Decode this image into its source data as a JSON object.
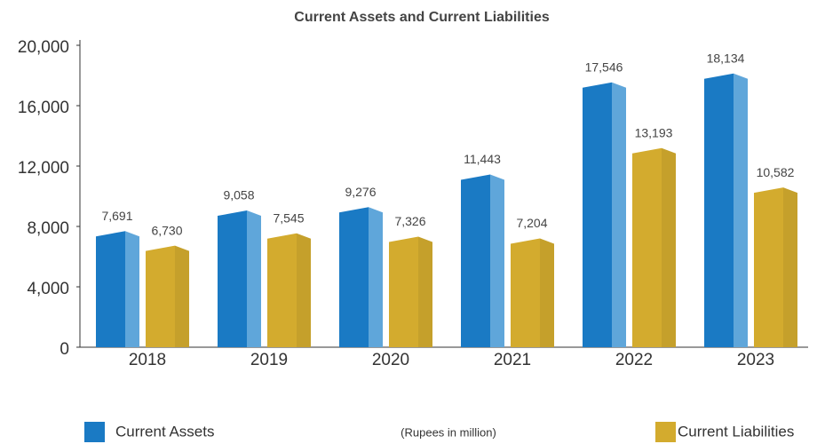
{
  "chart_data": {
    "type": "bar3d",
    "title": "Current Assets and Current Liabilities",
    "categories": [
      "2018",
      "2019",
      "2020",
      "2021",
      "2022",
      "2023"
    ],
    "series": [
      {
        "name": "Current Assets",
        "color": "#1a7ac4",
        "side_color": "#5fa6da",
        "values": [
          7691,
          9058,
          9276,
          11443,
          17546,
          18134
        ],
        "value_labels": [
          "7,691",
          "9,058",
          "9,276",
          "11,443",
          "17,546",
          "18,134"
        ]
      },
      {
        "name": "Current Liabilities",
        "color": "#d3ab2e",
        "side_color": "#c5a02b",
        "values": [
          6730,
          7545,
          7326,
          7204,
          13193,
          10582
        ],
        "value_labels": [
          "6,730",
          "7,545",
          "7,326",
          "7,204",
          "13,193",
          "10,582"
        ]
      }
    ],
    "ylim": [
      0,
      20000
    ],
    "yticks": [
      0,
      {
        "value": 4000,
        "label": "4,000"
      },
      {
        "value": 8000,
        "label": "8,000"
      },
      {
        "value": 12000,
        "label": "12,000"
      },
      {
        "value": 16000,
        "label": "16,000"
      },
      {
        "value": 20000,
        "label": "20,000"
      }
    ],
    "note": "(Rupees in million)"
  }
}
